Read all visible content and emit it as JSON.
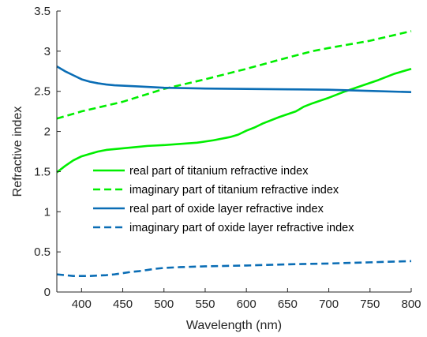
{
  "chart_data": {
    "type": "line",
    "title": "",
    "xlabel": "Wavelength (nm)",
    "ylabel": "Refractive index",
    "xlim": [
      370,
      800
    ],
    "ylim": [
      0,
      3.5
    ],
    "x_ticks": [
      "400",
      "450",
      "500",
      "550",
      "600",
      "650",
      "700",
      "750",
      "800"
    ],
    "y_ticks": [
      "0",
      "0.5",
      "1",
      "1.5",
      "2",
      "2.5",
      "3",
      "3.5"
    ],
    "grid": false,
    "legend_position": "center",
    "series": [
      {
        "name": "real part of titanium refractive index",
        "color": "#00ee00",
        "style": "solid",
        "x": [
          370,
          380,
          390,
          400,
          410,
          420,
          430,
          440,
          450,
          460,
          470,
          480,
          490,
          500,
          520,
          540,
          560,
          580,
          590,
          600,
          610,
          620,
          640,
          660,
          665,
          670,
          680,
          700,
          720,
          740,
          760,
          780,
          800
        ],
        "y": [
          1.49,
          1.57,
          1.64,
          1.69,
          1.72,
          1.75,
          1.77,
          1.78,
          1.79,
          1.8,
          1.81,
          1.82,
          1.825,
          1.83,
          1.845,
          1.86,
          1.89,
          1.93,
          1.96,
          2.01,
          2.05,
          2.1,
          2.18,
          2.25,
          2.28,
          2.31,
          2.35,
          2.42,
          2.5,
          2.57,
          2.64,
          2.72,
          2.78
        ]
      },
      {
        "name": "imaginary part of titanium refractive index",
        "color": "#00ee00",
        "style": "dashed",
        "x": [
          370,
          400,
          450,
          500,
          550,
          600,
          650,
          680,
          700,
          750,
          800
        ],
        "y": [
          2.16,
          2.25,
          2.37,
          2.53,
          2.65,
          2.78,
          2.92,
          3.0,
          3.04,
          3.13,
          3.25
        ]
      },
      {
        "name": "real part of oxide layer refractive index",
        "color": "#0a6db5",
        "style": "solid",
        "x": [
          370,
          380,
          390,
          400,
          410,
          420,
          430,
          440,
          450,
          470,
          500,
          550,
          600,
          650,
          700,
          750,
          800
        ],
        "y": [
          2.81,
          2.75,
          2.7,
          2.65,
          2.62,
          2.6,
          2.585,
          2.575,
          2.57,
          2.56,
          2.545,
          2.535,
          2.53,
          2.525,
          2.52,
          2.505,
          2.49
        ]
      },
      {
        "name": "imaginary part of oxide layer refractive index",
        "color": "#0a6db5",
        "style": "dashed",
        "x": [
          370,
          380,
          390,
          400,
          410,
          420,
          430,
          440,
          450,
          460,
          470,
          480,
          490,
          500,
          520,
          550,
          600,
          650,
          700,
          750,
          800
        ],
        "y": [
          0.22,
          0.21,
          0.2,
          0.2,
          0.2,
          0.205,
          0.21,
          0.22,
          0.235,
          0.25,
          0.26,
          0.275,
          0.29,
          0.3,
          0.31,
          0.32,
          0.33,
          0.345,
          0.355,
          0.37,
          0.385
        ]
      }
    ]
  }
}
